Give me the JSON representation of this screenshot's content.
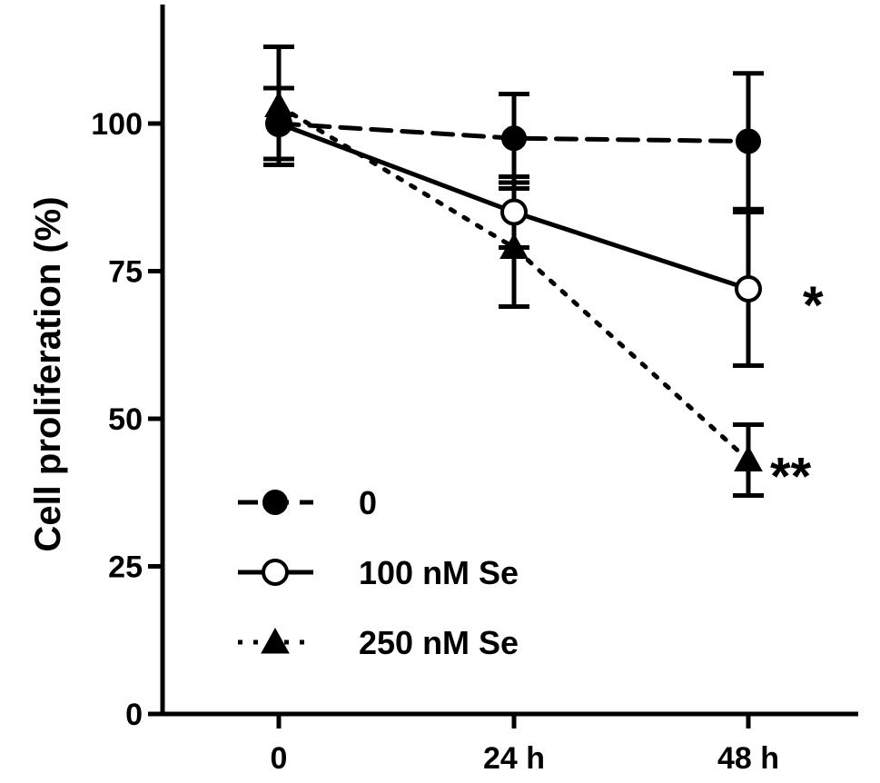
{
  "chart_data": {
    "type": "line",
    "title": "",
    "xlabel": "",
    "ylabel": "Cell proliferation (%)",
    "categories": [
      "0",
      "24 h",
      "48 h"
    ],
    "ylim": [
      0,
      120
    ],
    "yticks": [
      "0",
      "25",
      "50",
      "75",
      "100"
    ],
    "grid": false,
    "legend_position": "bottom-left",
    "series": [
      {
        "name": "0",
        "values": [
          100,
          97.5,
          97
        ],
        "errors": [
          6,
          7.5,
          11.5
        ],
        "marker": "filled-circle",
        "line_style": "dashed",
        "color": "#000000"
      },
      {
        "name": "100 nM Se",
        "values": [
          100,
          85,
          72
        ],
        "errors": [
          6,
          6,
          13
        ],
        "marker": "open-circle",
        "line_style": "solid",
        "color": "#000000"
      },
      {
        "name": "250 nM Se",
        "values": [
          103,
          79,
          43
        ],
        "errors": [
          10,
          10,
          6
        ],
        "marker": "filled-triangle",
        "line_style": "dotted",
        "color": "#000000"
      }
    ],
    "annotations": [
      {
        "text": "*",
        "category": "48 h",
        "series": "100 nM Se"
      },
      {
        "text": "**",
        "category": "48 h",
        "series": "250 nM Se"
      }
    ]
  }
}
